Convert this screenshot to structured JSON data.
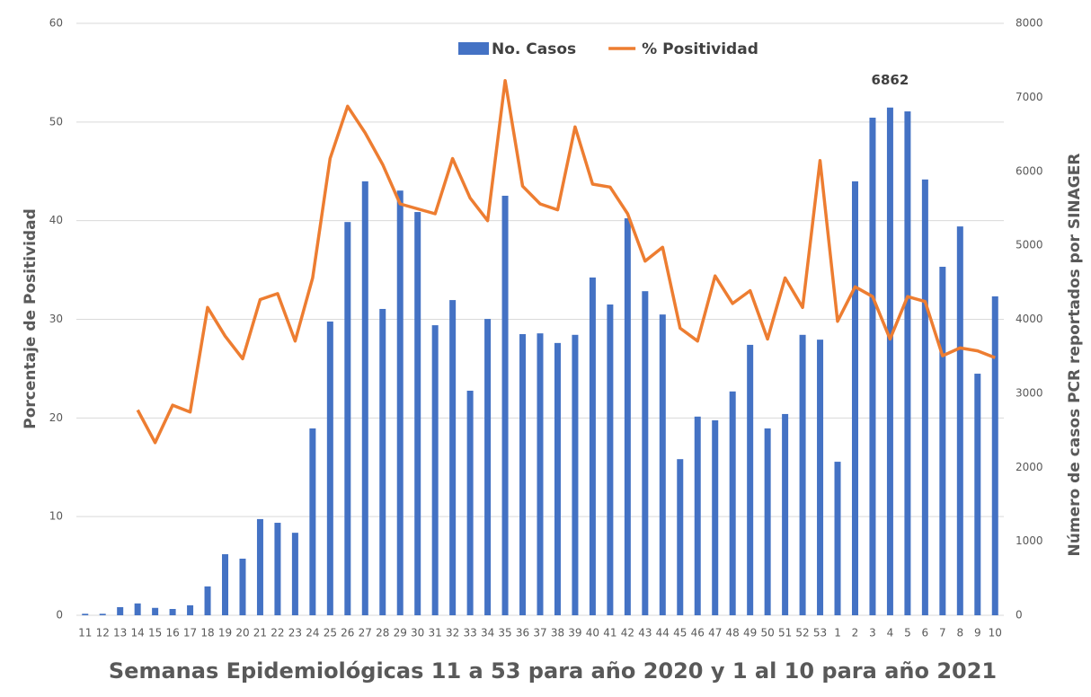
{
  "chart_data": {
    "type": "bar-line",
    "x_label": "Semanas Epidemiológicas 11 a 53 para año 2020 y 1 al 10 para año 2021",
    "y_label": "Porcentaje de Positividad",
    "y2_label": "Número de casos PCR reportados por SINAGER",
    "categories": [
      "11",
      "12",
      "13",
      "14",
      "15",
      "16",
      "17",
      "18",
      "19",
      "20",
      "21",
      "22",
      "23",
      "24",
      "25",
      "26",
      "27",
      "28",
      "29",
      "30",
      "31",
      "32",
      "33",
      "34",
      "35",
      "36",
      "37",
      "38",
      "39",
      "40",
      "41",
      "42",
      "43",
      "44",
      "45",
      "46",
      "47",
      "48",
      "49",
      "50",
      "51",
      "52",
      "53",
      "1",
      "2",
      "3",
      "4",
      "5",
      "6",
      "7",
      "8",
      "9",
      "10"
    ],
    "series": [
      {
        "name": "No. Casos",
        "type": "bar",
        "axis": "y2",
        "color": "#4472c4",
        "values": [
          20,
          20,
          110,
          160,
          100,
          85,
          135,
          390,
          825,
          765,
          1300,
          1250,
          1115,
          2525,
          3970,
          5315,
          5865,
          4140,
          5740,
          5450,
          3920,
          4260,
          3035,
          4005,
          5670,
          3800,
          3810,
          3680,
          3790,
          4565,
          4200,
          5365,
          4380,
          4065,
          2110,
          2685,
          2635,
          3025,
          3655,
          2525,
          2720,
          3790,
          3725,
          2075,
          5865,
          6725,
          6862,
          6810,
          5890,
          4710,
          5255,
          3265,
          4310
        ],
        "value_labels": [
          null,
          null,
          null,
          null,
          null,
          null,
          null,
          null,
          null,
          null,
          null,
          null,
          null,
          null,
          null,
          null,
          null,
          null,
          null,
          null,
          null,
          null,
          null,
          null,
          null,
          null,
          null,
          null,
          null,
          null,
          null,
          null,
          null,
          null,
          null,
          null,
          null,
          null,
          null,
          null,
          null,
          null,
          null,
          null,
          null,
          null,
          "6862",
          null,
          null,
          null,
          null,
          null,
          null
        ]
      },
      {
        "name": "% Positividad",
        "type": "line",
        "color": "#ed7d31",
        "values": [
          null,
          null,
          null,
          20.8,
          17.5,
          21.3,
          20.6,
          31.2,
          28.3,
          26.0,
          32.0,
          32.6,
          27.8,
          34.2,
          46.3,
          51.6,
          48.9,
          45.7,
          41.7,
          41.2,
          40.7,
          46.3,
          42.3,
          40.0,
          54.2,
          43.5,
          41.7,
          41.1,
          49.5,
          43.7,
          43.4,
          40.7,
          35.9,
          37.3,
          29.1,
          27.8,
          34.4,
          31.6,
          32.9,
          28.0,
          34.2,
          31.2,
          46.1,
          29.8,
          33.3,
          32.3,
          28.0,
          32.3,
          31.8,
          26.3,
          27.1,
          26.8,
          26.1
        ]
      }
    ],
    "ylim": [
      0,
      60
    ],
    "yticks": [
      0,
      10,
      20,
      30,
      40,
      50,
      60
    ],
    "y2lim": [
      0,
      8000
    ],
    "y2ticks": [
      0,
      1000,
      2000,
      3000,
      4000,
      5000,
      6000,
      7000,
      8000
    ],
    "grid": true,
    "legend": "top"
  }
}
